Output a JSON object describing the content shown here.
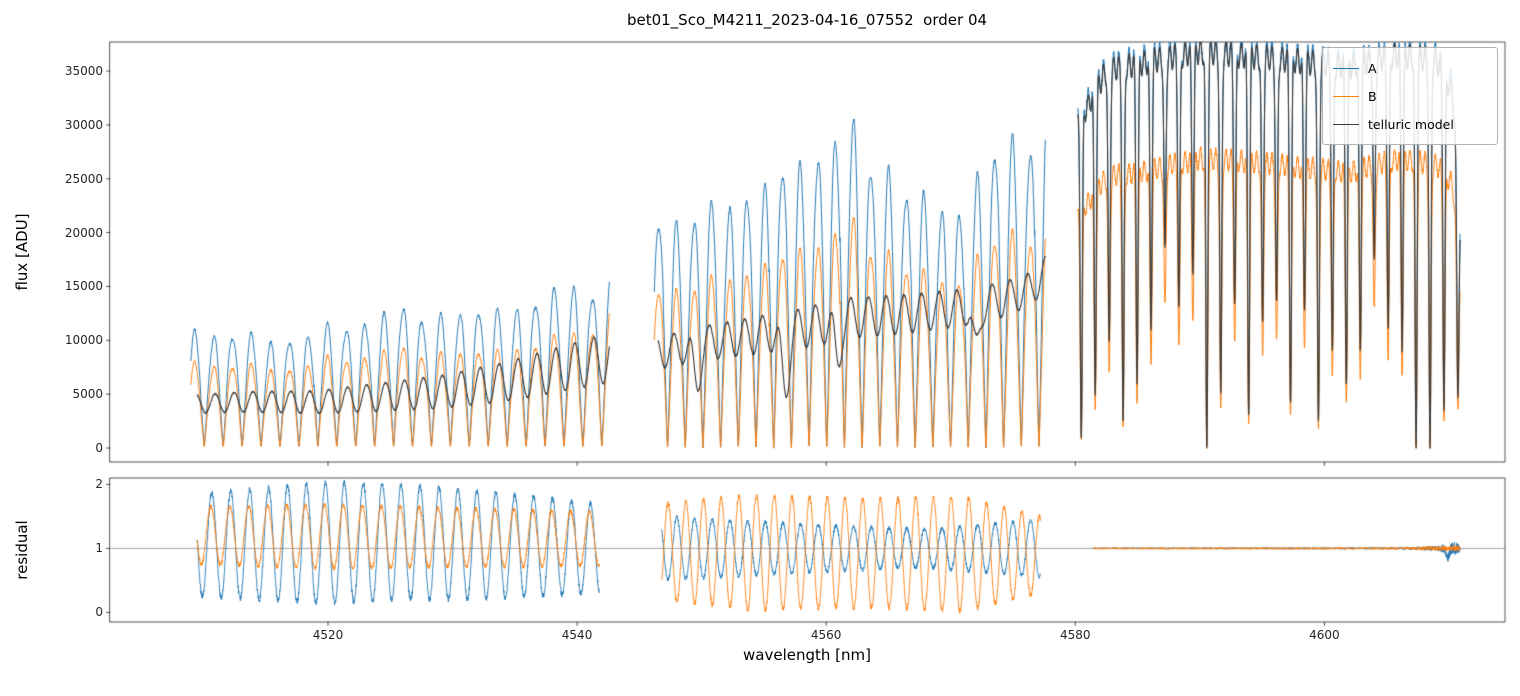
{
  "chart_data": {
    "type": "line",
    "title": "bet01_Sco_M4211_2023-04-16_07552  order 04",
    "xlabel": "wavelength [nm]",
    "xlim": [
      4502.5,
      4614.5
    ],
    "xticks": [
      4520,
      4540,
      4560,
      4580,
      4600
    ],
    "legend_position": "upper right",
    "panels": [
      {
        "ylabel": "flux [ADU]",
        "ylim": [
          -1300,
          37700
        ],
        "yticks": [
          0,
          5000,
          10000,
          15000,
          20000,
          25000,
          30000,
          35000
        ],
        "grid": false
      },
      {
        "ylabel": "residual",
        "ylim": [
          -0.15,
          2.1
        ],
        "yticks": [
          0,
          1,
          2
        ],
        "hline": 1,
        "grid": false
      }
    ],
    "flux_series": [
      {
        "name": "A",
        "color": "#1f77b4",
        "segments": [
          {
            "mode": "peaks",
            "x0": 4509.0,
            "x1": 4542.6,
            "period": 1.52,
            "phase": 0.3,
            "sharp": 0.6,
            "bottom": 150,
            "noise": 120,
            "top": [
              [
                4509,
                9700
              ],
              [
                4512,
                10600
              ],
              [
                4516,
                9900
              ],
              [
                4520,
                11000
              ],
              [
                4524,
                11900
              ],
              [
                4528,
                12500
              ],
              [
                4532,
                12900
              ],
              [
                4536,
                13300
              ],
              [
                4539.5,
                14600
              ],
              [
                4542.6,
                15800
              ]
            ]
          },
          {
            "mode": "peaks",
            "x0": 4546.2,
            "x1": 4577.6,
            "period": 1.42,
            "phase": 0.0,
            "sharp": 0.58,
            "bottom": 0,
            "noise": 150,
            "top": [
              [
                4546.2,
                19200
              ],
              [
                4550,
                21800
              ],
              [
                4554,
                23800
              ],
              [
                4558,
                26400
              ],
              [
                4561.5,
                28300
              ],
              [
                4564.5,
                26800
              ],
              [
                4567.5,
                23600
              ],
              [
                4570.5,
                22400
              ],
              [
                4573.5,
                26800
              ],
              [
                4576,
                29500
              ],
              [
                4577.6,
                31200
              ]
            ]
          },
          {
            "mode": "absorption",
            "x0": 4580.2,
            "x1": 4610.9,
            "period": 1.12,
            "phase": 0.0,
            "dipSharp": 9,
            "depthBase": 0.78,
            "depthVar": 0.3,
            "noise": 250,
            "rippleAmp": 0.035,
            "ripplePeriod": 0.41,
            "top": [
              [
                4580.2,
                30500
              ],
              [
                4582.5,
                35300
              ],
              [
                4586,
                36200
              ],
              [
                4590,
                37100
              ],
              [
                4594,
                36700
              ],
              [
                4598,
                36200
              ],
              [
                4602,
                35700
              ],
              [
                4606,
                36800
              ],
              [
                4609,
                36200
              ],
              [
                4610.3,
                33500
              ],
              [
                4610.9,
                21000
              ]
            ]
          }
        ]
      },
      {
        "name": "B",
        "color": "#ff7f0e",
        "segments": [
          {
            "mode": "peaks",
            "x0": 4509.0,
            "x1": 4542.6,
            "period": 1.52,
            "phase": 0.3,
            "sharp": 0.6,
            "bottom": 100,
            "noise": 100,
            "top": [
              [
                4509,
                7100
              ],
              [
                4512,
                7700
              ],
              [
                4516,
                7300
              ],
              [
                4520,
                8100
              ],
              [
                4524,
                8600
              ],
              [
                4528,
                8900
              ],
              [
                4532,
                9100
              ],
              [
                4536,
                9400
              ],
              [
                4539.5,
                10300
              ],
              [
                4542.6,
                12700
              ]
            ]
          },
          {
            "mode": "peaks",
            "x0": 4546.2,
            "x1": 4577.6,
            "period": 1.42,
            "phase": 0.0,
            "sharp": 0.58,
            "bottom": 0,
            "noise": 120,
            "top": [
              [
                4546.2,
                13400
              ],
              [
                4550,
                15200
              ],
              [
                4554,
                16600
              ],
              [
                4558,
                18400
              ],
              [
                4561.5,
                19800
              ],
              [
                4564.5,
                18800
              ],
              [
                4567.5,
                16500
              ],
              [
                4570.5,
                15700
              ],
              [
                4573.5,
                18800
              ],
              [
                4576,
                20400
              ],
              [
                4577.6,
                21200
              ]
            ]
          },
          {
            "mode": "absorption",
            "x0": 4580.2,
            "x1": 4610.9,
            "period": 1.12,
            "phase": 0.0,
            "dipSharp": 9,
            "depthBase": 0.78,
            "depthVar": 0.3,
            "noise": 200,
            "rippleAmp": 0.035,
            "ripplePeriod": 0.41,
            "top": [
              [
                4580.2,
                21500
              ],
              [
                4582.5,
                25200
              ],
              [
                4586,
                25800
              ],
              [
                4590,
                26900
              ],
              [
                4594,
                26600
              ],
              [
                4598,
                26100
              ],
              [
                4602,
                25600
              ],
              [
                4606,
                26900
              ],
              [
                4609,
                26300
              ],
              [
                4610.3,
                24500
              ],
              [
                4610.9,
                15500
              ]
            ]
          }
        ]
      },
      {
        "name": "telluric model",
        "color": "#3b3b3b",
        "segments": [
          {
            "mode": "smooth",
            "x0": 4509.5,
            "x1": 4542.6,
            "period": 1.52,
            "phase": 1.9,
            "noise": 60,
            "mean": [
              [
                4509.5,
                4100
              ],
              [
                4514,
                4300
              ],
              [
                4519,
                4250
              ],
              [
                4524,
                4700
              ],
              [
                4529,
                5200
              ],
              [
                4534,
                6100
              ],
              [
                4539,
                7400
              ],
              [
                4542.6,
                8400
              ]
            ],
            "amp": [
              [
                4509.5,
                850
              ],
              [
                4519,
                1050
              ],
              [
                4529,
                1500
              ],
              [
                4542.6,
                2300
              ]
            ]
          },
          {
            "mode": "smooth",
            "x0": 4546.5,
            "x1": 4577.6,
            "period": 1.42,
            "phase": 2.2,
            "noise": 80,
            "mean": [
              [
                4546.5,
                8800
              ],
              [
                4550,
                9700
              ],
              [
                4554,
                10400
              ],
              [
                4558,
                11100
              ],
              [
                4562,
                12100
              ],
              [
                4566,
                12400
              ],
              [
                4570,
                12900
              ],
              [
                4574,
                13700
              ],
              [
                4576.5,
                14800
              ],
              [
                4577.6,
                16300
              ]
            ],
            "amp": [
              [
                4546.5,
                1450
              ],
              [
                4560,
                1900
              ],
              [
                4570,
                1700
              ],
              [
                4577.6,
                1500
              ]
            ],
            "dips": [
              [
                4549.6,
                3600,
                0.28
              ],
              [
                4556.7,
                5400,
                0.3
              ],
              [
                4560.9,
                3800,
                0.26
              ],
              [
                4572.0,
                4200,
                0.27
              ]
            ]
          },
          {
            "mode": "absorption",
            "x0": 4580.2,
            "x1": 4610.9,
            "period": 1.12,
            "phase": 0.0,
            "dipSharp": 9,
            "depthBase": 0.78,
            "depthVar": 0.3,
            "noise": 150,
            "rippleAmp": 0.03,
            "ripplePeriod": 0.41,
            "top": [
              [
                4580.2,
                30000
              ],
              [
                4582.5,
                35000
              ],
              [
                4586,
                35900
              ],
              [
                4590,
                36800
              ],
              [
                4594,
                36400
              ],
              [
                4598,
                35900
              ],
              [
                4602,
                35400
              ],
              [
                4606,
                36500
              ],
              [
                4609,
                35900
              ],
              [
                4610.3,
                33000
              ],
              [
                4610.9,
                20500
              ]
            ]
          }
        ]
      }
    ],
    "residual_series": [
      {
        "name": "A",
        "color": "#1f77b4",
        "segments": [
          {
            "mode": "smooth",
            "x0": 4509.5,
            "x1": 4541.8,
            "period": 1.52,
            "phase": 3.0,
            "noise": 0.04,
            "mean": [
              [
                4509.5,
                1.05
              ],
              [
                4525,
                1.1
              ],
              [
                4541.8,
                1.0
              ]
            ],
            "amp": [
              [
                4509.5,
                0.8
              ],
              [
                4520,
                0.95
              ],
              [
                4532,
                0.85
              ],
              [
                4541.8,
                0.7
              ]
            ]
          },
          {
            "mode": "smooth",
            "x0": 4546.8,
            "x1": 4577.2,
            "period": 1.42,
            "phase": 2.5,
            "noise": 0.03,
            "mean": [
              [
                4546.8,
                1.0
              ],
              [
                4577.2,
                1.0
              ]
            ],
            "amp": [
              [
                4546.8,
                0.5
              ],
              [
                4558,
                0.38
              ],
              [
                4568,
                0.3
              ],
              [
                4577.2,
                0.45
              ]
            ]
          },
          {
            "mode": "noiseflat",
            "x0": 4581.5,
            "x1": 4610.9,
            "mean": 1.0,
            "amp": [
              [
                4581.5,
                0.012
              ],
              [
                4606,
                0.015
              ],
              [
                4609,
                0.04
              ],
              [
                4610.5,
                0.1
              ],
              [
                4610.9,
                0.06
              ]
            ],
            "dips": [
              [
                4609.9,
                0.13,
                0.12
              ]
            ]
          }
        ]
      },
      {
        "name": "B",
        "color": "#ff7f0e",
        "segments": [
          {
            "mode": "smooth",
            "x0": 4509.5,
            "x1": 4541.8,
            "period": 1.52,
            "phase": 3.3,
            "noise": 0.03,
            "mean": [
              [
                4509.5,
                1.2
              ],
              [
                4541.8,
                1.15
              ]
            ],
            "amp": [
              [
                4509.5,
                0.45
              ],
              [
                4520,
                0.5
              ],
              [
                4541.8,
                0.42
              ]
            ]
          },
          {
            "mode": "smooth",
            "x0": 4546.8,
            "x1": 4577.2,
            "period": 1.42,
            "phase": 5.6,
            "noise": 0.035,
            "mean": [
              [
                4546.8,
                0.95
              ],
              [
                4577.2,
                0.9
              ]
            ],
            "amp": [
              [
                4546.8,
                0.75
              ],
              [
                4554,
                0.9
              ],
              [
                4564,
                0.85
              ],
              [
                4571,
                0.9
              ],
              [
                4577.2,
                0.6
              ]
            ]
          },
          {
            "mode": "noiseflat",
            "x0": 4581.5,
            "x1": 4610.9,
            "mean": 1.0,
            "amp": [
              [
                4581.5,
                0.012
              ],
              [
                4606,
                0.015
              ],
              [
                4609,
                0.035
              ],
              [
                4610.9,
                0.05
              ]
            ]
          }
        ]
      }
    ]
  }
}
